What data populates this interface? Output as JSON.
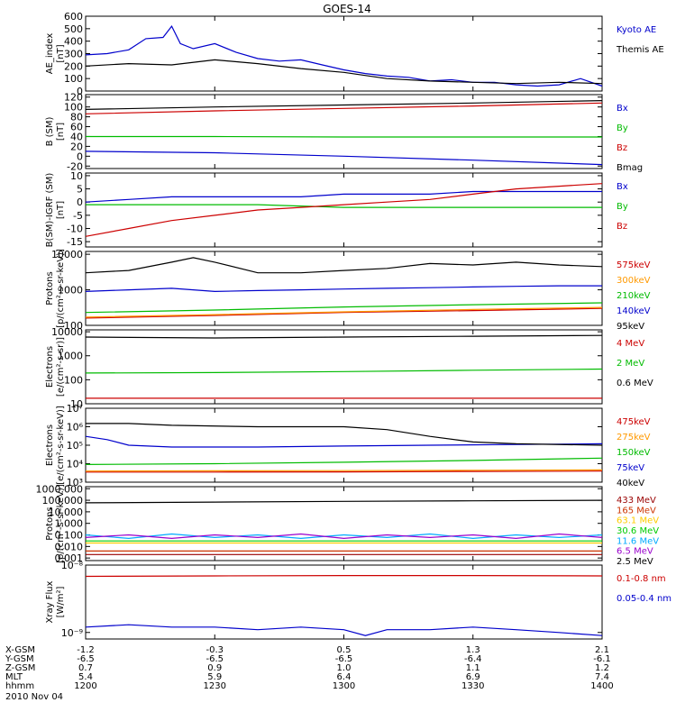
{
  "title": "GOES-14",
  "time_axis": {
    "ticks": [
      "1200",
      "1230",
      "1300",
      "1330",
      "1400"
    ],
    "date": "2010 Nov 04",
    "rows": [
      {
        "label": "X-GSM",
        "values": [
          "-1.2",
          "-0.3",
          "0.5",
          "1.3",
          "2.1"
        ]
      },
      {
        "label": "Y-GSM",
        "values": [
          "-6.5",
          "-6.5",
          "-6.5",
          "-6.4",
          "-6.1"
        ]
      },
      {
        "label": "Z-GSM",
        "values": [
          "0.7",
          "0.9",
          "1.0",
          "1.1",
          "1.2"
        ]
      },
      {
        "label": "MLT",
        "values": [
          "5.4",
          "5.9",
          "6.4",
          "6.9",
          "7.4"
        ]
      },
      {
        "label": "hhmm",
        "values": [
          "1200",
          "1230",
          "1300",
          "1330",
          "1400"
        ]
      }
    ]
  },
  "chart_data": [
    {
      "type": "line",
      "ylabel": [
        "AE_index",
        "[nT]"
      ],
      "yscale": "linear",
      "ylim": [
        0,
        600
      ],
      "yticks": [
        0,
        100,
        200,
        300,
        400,
        500,
        600
      ],
      "ytick_labels": [
        "0",
        "100",
        "200",
        "300",
        "400",
        "500",
        "600"
      ],
      "series": [
        {
          "name": "Kyoto AE",
          "color": "#0000cc",
          "x": [
            0,
            5,
            10,
            14,
            18,
            20,
            22,
            25,
            30,
            35,
            40,
            45,
            50,
            55,
            60,
            65,
            70,
            75,
            80,
            85,
            90,
            95,
            100,
            105,
            110,
            115,
            120
          ],
          "y": [
            290,
            300,
            330,
            420,
            430,
            520,
            380,
            340,
            380,
            310,
            260,
            240,
            250,
            210,
            170,
            140,
            120,
            110,
            80,
            90,
            70,
            70,
            50,
            40,
            50,
            100,
            40
          ]
        },
        {
          "name": "Themis AE",
          "color": "#000000",
          "x": [
            0,
            10,
            20,
            30,
            40,
            50,
            60,
            70,
            80,
            90,
            100,
            110,
            120
          ],
          "y": [
            200,
            220,
            210,
            250,
            220,
            180,
            150,
            100,
            80,
            70,
            60,
            70,
            60
          ]
        }
      ]
    },
    {
      "type": "line",
      "ylabel": [
        "B (SM)",
        "[nT]"
      ],
      "yscale": "linear",
      "ylim": [
        -25,
        125
      ],
      "yticks": [
        -20,
        0,
        20,
        40,
        60,
        80,
        100,
        120
      ],
      "ytick_labels": [
        "-20",
        "0",
        "20",
        "40",
        "60",
        "80",
        "100",
        "120"
      ],
      "series": [
        {
          "name": "Bx",
          "color": "#0000cc",
          "x": [
            0,
            30,
            60,
            90,
            120
          ],
          "y": [
            10,
            7,
            0,
            -8,
            -17
          ]
        },
        {
          "name": "By",
          "color": "#00bb00",
          "x": [
            0,
            30,
            60,
            90,
            120
          ],
          "y": [
            40,
            40,
            39,
            39,
            39
          ]
        },
        {
          "name": "Bz",
          "color": "#cc0000",
          "x": [
            0,
            30,
            60,
            90,
            120
          ],
          "y": [
            86,
            92,
            97,
            102,
            108
          ]
        },
        {
          "name": "Bmag",
          "color": "#000000",
          "x": [
            0,
            30,
            60,
            90,
            120
          ],
          "y": [
            95,
            100,
            104,
            108,
            113
          ]
        }
      ]
    },
    {
      "type": "line",
      "ylabel": [
        "B(SM)-IGRF (SM)",
        "[nT]"
      ],
      "yscale": "linear",
      "ylim": [
        -17,
        11
      ],
      "yticks": [
        -15,
        -10,
        -5,
        0,
        5,
        10
      ],
      "ytick_labels": [
        "-15",
        "-10",
        "-5",
        "0",
        "5",
        "10"
      ],
      "series": [
        {
          "name": "Bx",
          "color": "#0000cc",
          "x": [
            0,
            10,
            20,
            30,
            40,
            50,
            60,
            70,
            80,
            90,
            100,
            110,
            120
          ],
          "y": [
            0,
            1,
            2,
            2,
            2,
            2,
            3,
            3,
            3,
            4,
            4,
            4,
            4
          ]
        },
        {
          "name": "By",
          "color": "#00bb00",
          "x": [
            0,
            20,
            40,
            60,
            80,
            100,
            120
          ],
          "y": [
            -1,
            -1,
            -1,
            -2,
            -2,
            -2,
            -2
          ]
        },
        {
          "name": "Bz",
          "color": "#cc0000",
          "x": [
            0,
            10,
            20,
            30,
            40,
            50,
            60,
            70,
            80,
            90,
            100,
            110,
            120
          ],
          "y": [
            -13,
            -10,
            -7,
            -5,
            -3,
            -2,
            -1,
            0,
            1,
            3,
            5,
            6,
            7
          ]
        }
      ]
    },
    {
      "type": "line",
      "ylabel": [
        "Protons",
        "[p/(cm²-s-sr-keV)]"
      ],
      "yscale": "log",
      "ylim": [
        100,
        12000
      ],
      "yticks": [
        100,
        1000,
        10000
      ],
      "ytick_labels": [
        "100",
        "1000",
        "10000"
      ],
      "series": [
        {
          "name": "575keV",
          "color": "#cc0000",
          "x": [
            0,
            30,
            60,
            90,
            120
          ],
          "y": [
            160,
            190,
            230,
            260,
            300
          ]
        },
        {
          "name": "300keV",
          "color": "#ff9900",
          "x": [
            0,
            30,
            60,
            90,
            120
          ],
          "y": [
            170,
            200,
            240,
            280,
            320
          ]
        },
        {
          "name": "210keV",
          "color": "#00bb00",
          "x": [
            0,
            30,
            60,
            90,
            120
          ],
          "y": [
            230,
            270,
            330,
            380,
            430
          ]
        },
        {
          "name": "140keV",
          "color": "#0000cc",
          "x": [
            0,
            10,
            20,
            30,
            40,
            50,
            60,
            70,
            80,
            90,
            100,
            110,
            120
          ],
          "y": [
            900,
            1000,
            1100,
            900,
            950,
            1000,
            1050,
            1100,
            1150,
            1200,
            1250,
            1300,
            1300
          ]
        },
        {
          "name": "95keV",
          "color": "#000000",
          "x": [
            0,
            10,
            20,
            25,
            30,
            40,
            50,
            60,
            70,
            80,
            90,
            100,
            110,
            120
          ],
          "y": [
            3000,
            3500,
            6000,
            8000,
            6000,
            3000,
            3000,
            3500,
            4000,
            5500,
            5000,
            6000,
            5000,
            4500
          ]
        }
      ]
    },
    {
      "type": "line",
      "ylabel": [
        "Electrons",
        "[e/(cm²-s-sr)]"
      ],
      "yscale": "log",
      "ylim": [
        10,
        12000
      ],
      "yticks": [
        10,
        100,
        1000,
        10000
      ],
      "ytick_labels": [
        "10",
        "100",
        "1000",
        "10000"
      ],
      "series": [
        {
          "name": "4 MeV",
          "color": "#cc0000",
          "x": [
            0,
            30,
            60,
            90,
            120
          ],
          "y": [
            17,
            17,
            17,
            17,
            17
          ]
        },
        {
          "name": "2 MeV",
          "color": "#00bb00",
          "x": [
            0,
            30,
            60,
            90,
            120
          ],
          "y": [
            190,
            200,
            220,
            250,
            280
          ]
        },
        {
          "name": "0.6 MeV",
          "color": "#000000",
          "x": [
            0,
            30,
            60,
            90,
            120
          ],
          "y": [
            6000,
            5500,
            6000,
            6500,
            7000
          ]
        }
      ]
    },
    {
      "type": "line",
      "ylabel": [
        "Electrons",
        "[e/(cm²-s-sr-keV)]"
      ],
      "yscale": "log",
      "ylim": [
        1000,
        10000000
      ],
      "yticks": [
        1000,
        10000,
        100000,
        1000000,
        10000000
      ],
      "ytick_labels": [
        "10³",
        "10⁴",
        "10⁵",
        "10⁶",
        "10⁷"
      ],
      "series": [
        {
          "name": "475keV",
          "color": "#cc0000",
          "x": [
            0,
            30,
            60,
            90,
            120
          ],
          "y": [
            3500,
            3500,
            3600,
            3800,
            4000
          ]
        },
        {
          "name": "275keV",
          "color": "#ff9900",
          "x": [
            0,
            30,
            60,
            90,
            120
          ],
          "y": [
            4000,
            4100,
            4200,
            4400,
            4600
          ]
        },
        {
          "name": "150keV",
          "color": "#00bb00",
          "x": [
            0,
            30,
            60,
            90,
            120
          ],
          "y": [
            9000,
            10000,
            12000,
            15000,
            20000
          ]
        },
        {
          "name": "75keV",
          "color": "#0000cc",
          "x": [
            0,
            5,
            10,
            20,
            40,
            60,
            80,
            100,
            120
          ],
          "y": [
            300000,
            200000,
            100000,
            80000,
            80000,
            90000,
            100000,
            110000,
            120000
          ]
        },
        {
          "name": "40keV",
          "color": "#000000",
          "x": [
            0,
            10,
            20,
            40,
            60,
            70,
            80,
            90,
            100,
            120
          ],
          "y": [
            1500000,
            1500000,
            1200000,
            1000000,
            1000000,
            700000,
            300000,
            150000,
            120000,
            100000
          ]
        }
      ]
    },
    {
      "type": "line",
      "ylabel": [
        "Protons",
        "[p/(cm²-s-sr-keV)]"
      ],
      "yscale": "log",
      "ylim": [
        0.0006,
        1500
      ],
      "yticks": [
        0.001,
        0.01,
        0.1,
        1,
        10,
        100,
        1000
      ],
      "ytick_labels": [
        "0.001",
        "0.010",
        "0.100",
        "1.000",
        "10.000",
        "100.000",
        "1000.000"
      ],
      "series": [
        {
          "name": "433 MeV",
          "color": "#990000",
          "x": [
            0,
            30,
            60,
            90,
            120
          ],
          "y": [
            0.002,
            0.002,
            0.002,
            0.002,
            0.002
          ]
        },
        {
          "name": "165 MeV",
          "color": "#cc3300",
          "x": [
            0,
            30,
            60,
            90,
            120
          ],
          "y": [
            0.004,
            0.004,
            0.004,
            0.004,
            0.004
          ]
        },
        {
          "name": "63.1 MeV",
          "color": "#ffcc00",
          "x": [
            0,
            30,
            60,
            90,
            120
          ],
          "y": [
            0.02,
            0.02,
            0.02,
            0.02,
            0.02
          ]
        },
        {
          "name": "30.6 MeV",
          "color": "#00cc00",
          "x": [
            0,
            30,
            60,
            90,
            120
          ],
          "y": [
            0.03,
            0.03,
            0.03,
            0.03,
            0.03
          ]
        },
        {
          "name": "11.6 MeV",
          "color": "#00aaff",
          "x": [
            0,
            10,
            20,
            30,
            40,
            50,
            60,
            70,
            80,
            90,
            100,
            110,
            120
          ],
          "y": [
            0.1,
            0.05,
            0.12,
            0.06,
            0.1,
            0.05,
            0.1,
            0.06,
            0.12,
            0.05,
            0.1,
            0.06,
            0.1
          ]
        },
        {
          "name": "6.5 MeV",
          "color": "#9900cc",
          "x": [
            0,
            10,
            20,
            30,
            40,
            50,
            60,
            70,
            80,
            90,
            100,
            110,
            120
          ],
          "y": [
            0.06,
            0.1,
            0.05,
            0.1,
            0.06,
            0.12,
            0.05,
            0.1,
            0.06,
            0.1,
            0.05,
            0.12,
            0.06
          ]
        },
        {
          "name": "2.5 MeV",
          "color": "#000000",
          "x": [
            0,
            30,
            60,
            90,
            120
          ],
          "y": [
            60,
            70,
            80,
            90,
            100
          ]
        }
      ]
    },
    {
      "type": "line",
      "ylabel": [
        "Xray Flux",
        "[W/m²]"
      ],
      "yscale": "log",
      "ylim": [
        8e-10,
        1e-08
      ],
      "yticks": [
        1e-09,
        1e-08
      ],
      "ytick_labels": [
        "10⁻⁹",
        "10⁻⁸"
      ],
      "series": [
        {
          "name": "0.1-0.8 nm",
          "color": "#cc0000",
          "x": [
            0,
            30,
            60,
            90,
            120
          ],
          "y": [
            6.8e-09,
            6.9e-09,
            7e-09,
            7e-09,
            6.9e-09
          ]
        },
        {
          "name": "0.05-0.4 nm",
          "color": "#0000cc",
          "x": [
            0,
            10,
            20,
            30,
            40,
            50,
            60,
            65,
            70,
            80,
            90,
            100,
            110,
            120
          ],
          "y": [
            1.2e-09,
            1.3e-09,
            1.2e-09,
            1.2e-09,
            1.1e-09,
            1.2e-09,
            1.1e-09,
            9e-10,
            1.1e-09,
            1.1e-09,
            1.2e-09,
            1.1e-09,
            1e-09,
            9e-10
          ]
        }
      ]
    }
  ]
}
